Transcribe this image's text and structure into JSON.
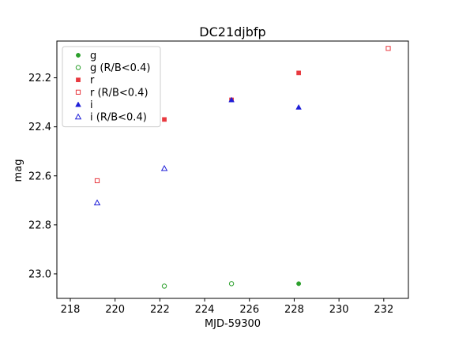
{
  "chart_data": {
    "type": "scatter",
    "title": "DC21djbfp",
    "xlabel": "MJD-59300",
    "ylabel": "mag",
    "xlim": [
      217.4,
      233.1
    ],
    "ylim": [
      23.1,
      22.05
    ],
    "y_inverted": true,
    "grid": false,
    "legend_position": "top-left",
    "x_ticks": [
      218,
      220,
      222,
      224,
      226,
      228,
      230,
      232
    ],
    "y_ticks": [
      22.2,
      22.4,
      22.6,
      22.8,
      23.0
    ],
    "x_tick_labels": [
      "218",
      "220",
      "222",
      "224",
      "226",
      "228",
      "230",
      "232"
    ],
    "y_tick_labels": [
      "22.2",
      "22.4",
      "22.6",
      "22.8",
      "23.0"
    ],
    "series": [
      {
        "name": "g",
        "color": "#2ca02c",
        "marker": "circle",
        "filled": true,
        "points": [
          {
            "x": 228.2,
            "y": 23.04
          }
        ]
      },
      {
        "name": "g (R/B<0.4)",
        "color": "#2ca02c",
        "marker": "circle",
        "filled": false,
        "points": [
          {
            "x": 222.2,
            "y": 23.05
          },
          {
            "x": 225.2,
            "y": 23.04
          }
        ]
      },
      {
        "name": "r",
        "color": "#e8393f",
        "marker": "square",
        "filled": true,
        "points": [
          {
            "x": 222.2,
            "y": 22.37
          },
          {
            "x": 225.2,
            "y": 22.29
          },
          {
            "x": 228.2,
            "y": 22.18
          }
        ]
      },
      {
        "name": "r (R/B<0.4)",
        "color": "#e8393f",
        "marker": "square",
        "filled": false,
        "points": [
          {
            "x": 219.2,
            "y": 22.62
          },
          {
            "x": 232.2,
            "y": 22.08
          }
        ]
      },
      {
        "name": "i",
        "color": "#1f1fd8",
        "marker": "triangle",
        "filled": true,
        "points": [
          {
            "x": 225.2,
            "y": 22.29
          },
          {
            "x": 228.2,
            "y": 22.32
          }
        ]
      },
      {
        "name": "i (R/B<0.4)",
        "color": "#1f1fd8",
        "marker": "triangle",
        "filled": false,
        "points": [
          {
            "x": 219.2,
            "y": 22.71
          },
          {
            "x": 222.2,
            "y": 22.57
          }
        ]
      }
    ]
  }
}
